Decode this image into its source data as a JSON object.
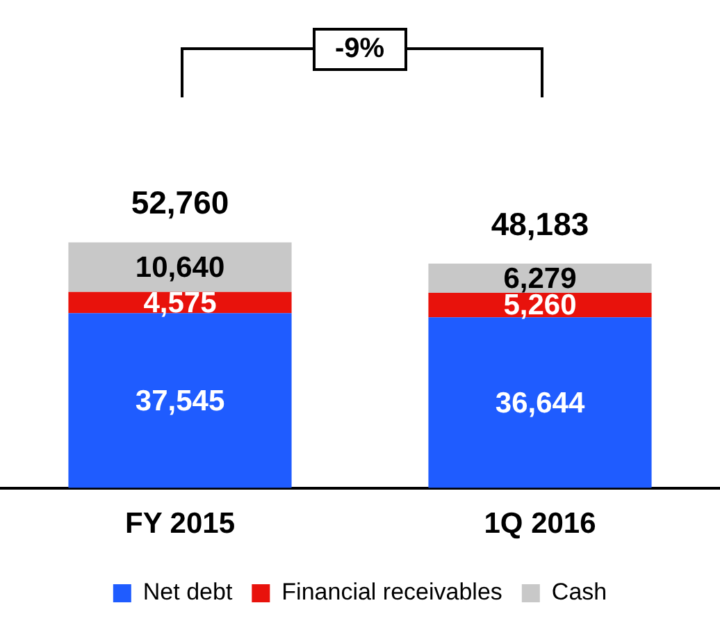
{
  "chart_data": {
    "type": "bar",
    "stacked": true,
    "categories": [
      "FY 2015",
      "1Q 2016"
    ],
    "series": [
      {
        "name": "Net debt",
        "color": "#1f5cff",
        "values": [
          37545,
          36644
        ],
        "value_labels": [
          "37,545",
          "36,644"
        ]
      },
      {
        "name": "Financial receivables",
        "color": "#e8120c",
        "values": [
          4575,
          5260
        ],
        "value_labels": [
          "4,575",
          "5,260"
        ]
      },
      {
        "name": "Cash",
        "color": "#c8c8c8",
        "values": [
          10640,
          6279
        ],
        "value_labels": [
          "10,640",
          "6,279"
        ]
      }
    ],
    "totals": [
      "52,760",
      "48,183"
    ],
    "annotations": [
      "-9%"
    ],
    "legend": "bottom",
    "grid": false
  }
}
